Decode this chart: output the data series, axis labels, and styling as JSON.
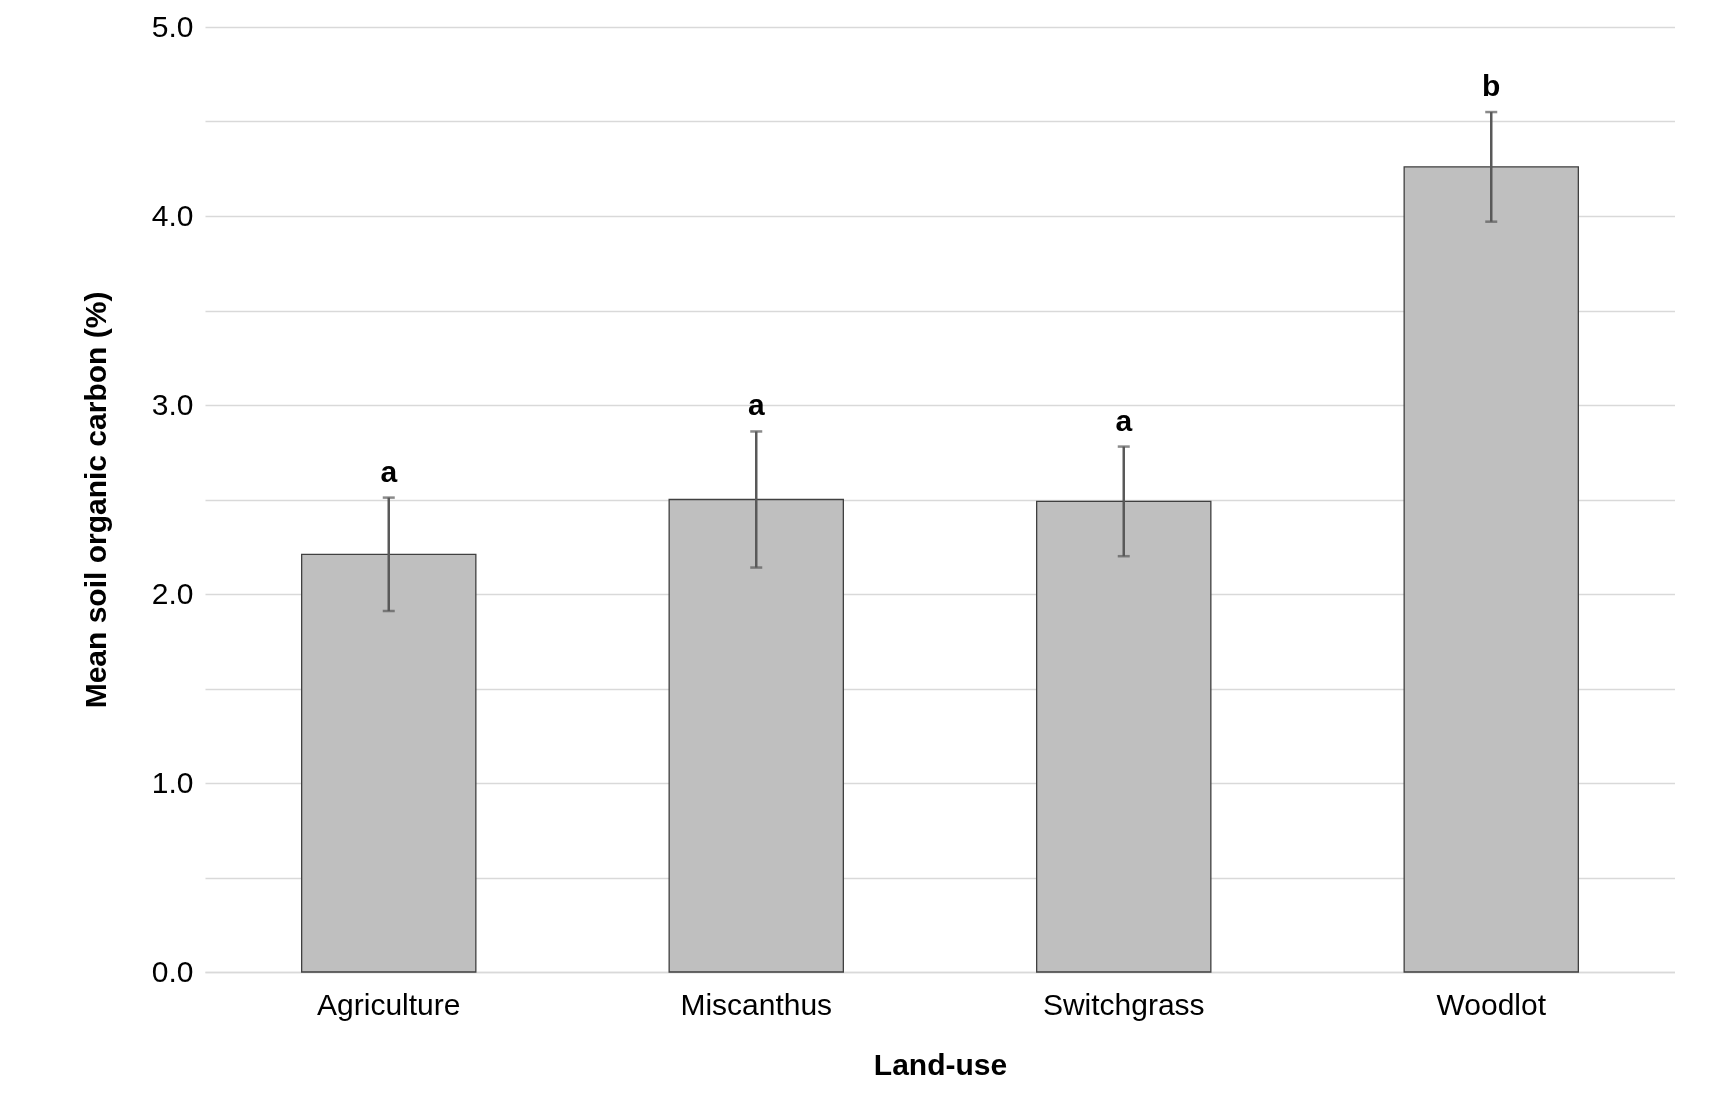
{
  "chart_data": {
    "type": "bar",
    "xlabel": "Land-use",
    "ylabel": "Mean soil organic carbon (%)",
    "categories": [
      "Agriculture",
      "Miscanthus",
      "Switchgrass",
      "Woodlot"
    ],
    "values": [
      2.21,
      2.5,
      2.49,
      4.26
    ],
    "errors": [
      0.3,
      0.36,
      0.29,
      0.29
    ],
    "color": "#bfbfbf",
    "ylim": [
      0,
      5
    ],
    "yticks": [
      {
        "value": 0,
        "label": "0.0"
      },
      {
        "value": 0.5,
        "label": null
      },
      {
        "value": 1,
        "label": "1.0"
      },
      {
        "value": 1.5,
        "label": null
      },
      {
        "value": 2,
        "label": "2.0"
      },
      {
        "value": 2.5,
        "label": null
      },
      {
        "value": 3,
        "label": "3.0"
      },
      {
        "value": 3.5,
        "label": null
      },
      {
        "value": 4,
        "label": "4.0"
      },
      {
        "value": 4.5,
        "label": null
      },
      {
        "value": 5,
        "label": "5.0"
      }
    ],
    "grid": "y",
    "annotations": [
      {
        "text": "a",
        "x": "Agriculture",
        "y": 2.51
      },
      {
        "text": "a",
        "x": "Miscanthus",
        "y": 2.86
      },
      {
        "text": "a",
        "x": "Switchgrass",
        "y": 2.78
      },
      {
        "text": "b",
        "x": "Woodlot",
        "y": 4.55
      }
    ]
  }
}
